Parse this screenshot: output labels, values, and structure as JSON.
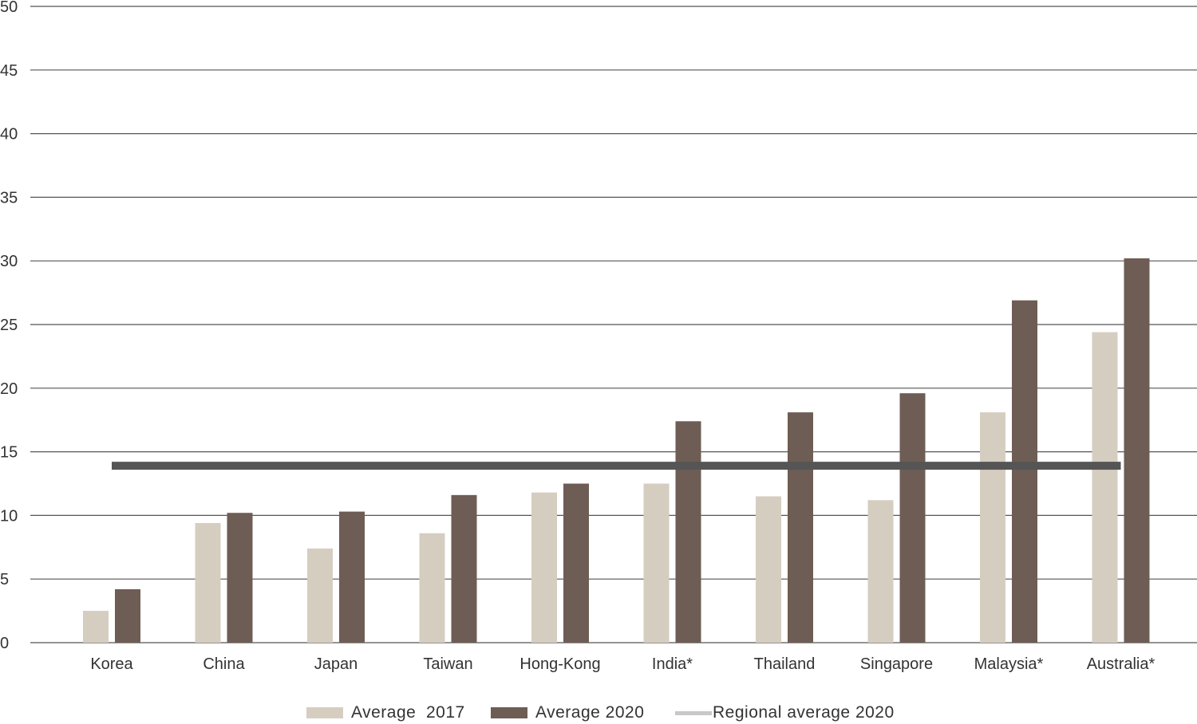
{
  "chart_data": {
    "type": "bar",
    "title": "",
    "xlabel": "",
    "ylabel": "",
    "ylim": [
      0,
      50
    ],
    "yticks": [
      0,
      5,
      10,
      15,
      20,
      25,
      30,
      35,
      40,
      45,
      50
    ],
    "grid": "horizontal",
    "legend_position": "bottom",
    "categories": [
      "Korea",
      "China",
      "Japan",
      "Taiwan",
      "Hong-Kong",
      "India*",
      "Thailand",
      "Singapore",
      "Malaysia*",
      "Australia*"
    ],
    "series": [
      {
        "name": "Average  2017",
        "color": "#d6cdc1",
        "values": [
          2.5,
          9.4,
          7.4,
          8.6,
          11.8,
          12.5,
          11.5,
          11.2,
          18.1,
          24.4
        ]
      },
      {
        "name": "Average 2020",
        "color": "#6e5d55",
        "values": [
          4.2,
          10.2,
          10.3,
          11.6,
          12.5,
          17.4,
          18.1,
          19.6,
          26.9,
          30.2
        ]
      }
    ],
    "reference_line": {
      "name": "Regional average 2020",
      "value": 13.9,
      "color": "#555555",
      "legend_color": "#c8c8c8"
    }
  }
}
